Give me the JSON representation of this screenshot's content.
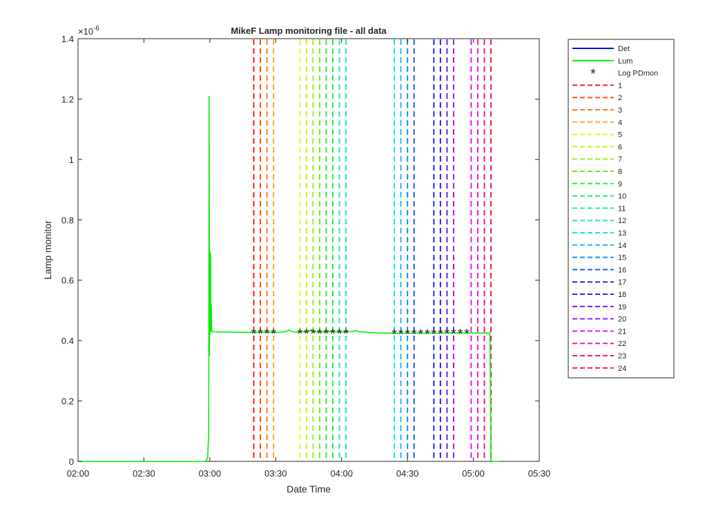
{
  "chart_data": {
    "type": "line",
    "title": "MikeF Lamp monitoring file - all data",
    "xlabel": "Date Time",
    "ylabel": "Lamp monitor",
    "y_exponent_label": "×10",
    "y_exponent_power": "-6",
    "xlim": [
      "02:00",
      "05:30"
    ],
    "ylim": [
      0,
      1.4
    ],
    "x_ticks": [
      "02:00",
      "02:30",
      "03:00",
      "03:30",
      "04:00",
      "04:30",
      "05:00",
      "05:30"
    ],
    "y_ticks": [
      0,
      0.2,
      0.4,
      0.6,
      0.8,
      1,
      1.2,
      1.4
    ],
    "y_tick_labels": [
      "0",
      "0.2",
      "0.4",
      "0.6",
      "0.8",
      "1",
      "1.2",
      "1.4"
    ],
    "grid": false,
    "legend_position": "outside-right",
    "series": [
      {
        "name": "Det",
        "color": "#0000ff",
        "style": "solid",
        "values": []
      },
      {
        "name": "Lum",
        "color": "#00ee00",
        "style": "solid",
        "x": [
          "02:00",
          "02:58",
          "02:59",
          "02:59:30",
          "02:59:40",
          "02:59:50",
          "03:00:00",
          "03:00:10",
          "03:00:20",
          "03:00:30",
          "03:00:40",
          "03:00:50",
          "03:01:00",
          "03:01:20",
          "03:02",
          "03:10",
          "03:20",
          "03:25",
          "03:30",
          "03:35",
          "03:36",
          "03:37",
          "03:40",
          "03:45",
          "03:46",
          "03:47",
          "03:50",
          "03:55",
          "04:00",
          "04:05",
          "04:06",
          "04:08",
          "04:10",
          "04:15",
          "04:20",
          "04:30",
          "04:40",
          "04:50",
          "05:00",
          "05:06",
          "05:07:30",
          "05:07:40",
          "05:08",
          "05:10",
          "05:12"
        ],
        "y": [
          0,
          0,
          0.01,
          0.1,
          1.21,
          0.35,
          0.7,
          0.42,
          0.69,
          0.43,
          0.52,
          0.44,
          0.43,
          0.43,
          0.429,
          0.428,
          0.427,
          0.428,
          0.427,
          0.43,
          0.436,
          0.43,
          0.428,
          0.43,
          0.436,
          0.43,
          0.428,
          0.43,
          0.428,
          0.43,
          0.433,
          0.43,
          0.428,
          0.426,
          0.425,
          0.425,
          0.425,
          0.426,
          0.425,
          0.425,
          0.425,
          0.36,
          0,
          0,
          0
        ]
      },
      {
        "name": "Log PDmon",
        "color": "#000000",
        "style": "marker-asterisk",
        "x": [
          "03:20",
          "03:23",
          "03:26",
          "03:29",
          "03:41",
          "03:44",
          "03:47",
          "03:50",
          "03:53",
          "03:56",
          "03:59",
          "04:02",
          "04:24",
          "04:27",
          "04:30",
          "04:33",
          "04:36",
          "04:39",
          "04:42",
          "04:45",
          "04:48",
          "04:51",
          "04:54",
          "04:57"
        ],
        "y": [
          0.426,
          0.426,
          0.426,
          0.426,
          0.426,
          0.426,
          0.426,
          0.426,
          0.426,
          0.426,
          0.426,
          0.426,
          0.424,
          0.424,
          0.424,
          0.424,
          0.424,
          0.424,
          0.424,
          0.424,
          0.425,
          0.425,
          0.425,
          0.425
        ]
      }
    ],
    "markers_vlines": [
      {
        "name": "1",
        "x": "03:20",
        "color": "#ff1a1a"
      },
      {
        "name": "2",
        "x": "03:23",
        "color": "#ff4d1a"
      },
      {
        "name": "3",
        "x": "03:26",
        "color": "#ff7a1a"
      },
      {
        "name": "4",
        "x": "03:29",
        "color": "#ffa826"
      },
      {
        "name": "5",
        "x": "03:41",
        "color": "#f2f21a"
      },
      {
        "name": "6",
        "x": "03:44",
        "color": "#c8f01a"
      },
      {
        "name": "7",
        "x": "03:47",
        "color": "#9ef01a"
      },
      {
        "name": "8",
        "x": "03:50",
        "color": "#66f01a"
      },
      {
        "name": "9",
        "x": "03:53",
        "color": "#33f033"
      },
      {
        "name": "10",
        "x": "03:56",
        "color": "#1af066"
      },
      {
        "name": "11",
        "x": "03:59",
        "color": "#1af0a0"
      },
      {
        "name": "12",
        "x": "04:02",
        "color": "#1ae6d0"
      },
      {
        "name": "13",
        "x": "04:24",
        "color": "#1ae0f0"
      },
      {
        "name": "14",
        "x": "04:27",
        "color": "#1ab8f0"
      },
      {
        "name": "15",
        "x": "04:30",
        "color": "#1a8cf0"
      },
      {
        "name": "16",
        "x": "04:33",
        "color": "#1a5ef0"
      },
      {
        "name": "17",
        "x": "04:42",
        "color": "#1a2ef0"
      },
      {
        "name": "18",
        "x": "04:45",
        "color": "#3a1af0"
      },
      {
        "name": "19",
        "x": "04:48",
        "color": "#6a1af0"
      },
      {
        "name": "20",
        "x": "04:51",
        "color": "#a01af0"
      },
      {
        "name": "21",
        "x": "04:59",
        "color": "#e01af0"
      },
      {
        "name": "22",
        "x": "05:02",
        "color": "#f01ab4"
      },
      {
        "name": "23",
        "x": "05:05",
        "color": "#f01a80"
      },
      {
        "name": "24",
        "x": "05:08",
        "color": "#f01a4a"
      }
    ]
  }
}
